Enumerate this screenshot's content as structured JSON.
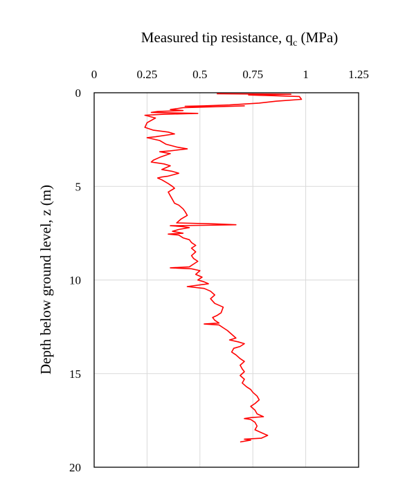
{
  "chart_data": {
    "type": "line",
    "xlabel_main": "Measured tip resistance, q",
    "xlabel_sub": "c",
    "xlabel_unit": " (MPa)",
    "ylabel": "Depth below ground level, z (m)",
    "xlim": [
      0,
      1.25
    ],
    "ylim": [
      0,
      20
    ],
    "y_inverted": true,
    "x_axis_position": "top",
    "grid": true,
    "x_ticks": [
      0,
      0.25,
      0.5,
      0.75,
      1,
      1.25
    ],
    "x_tick_labels": [
      "0",
      "0.25",
      "0.5",
      "0.75",
      "1",
      "1.25"
    ],
    "y_ticks": [
      0,
      5,
      10,
      15,
      20
    ],
    "y_tick_labels": [
      "0",
      "5",
      "10",
      "15",
      "20"
    ],
    "series": [
      {
        "color": "#ff0000",
        "points": [
          [
            0.58,
            0.05
          ],
          [
            0.93,
            0.08
          ],
          [
            0.73,
            0.12
          ],
          [
            0.97,
            0.2
          ],
          [
            0.98,
            0.35
          ],
          [
            0.86,
            0.45
          ],
          [
            0.78,
            0.55
          ],
          [
            0.64,
            0.65
          ],
          [
            0.52,
            0.7
          ],
          [
            0.43,
            0.72
          ],
          [
            0.56,
            0.75
          ],
          [
            0.71,
            0.7
          ],
          [
            0.42,
            0.8
          ],
          [
            0.36,
            0.9
          ],
          [
            0.42,
            0.95
          ],
          [
            0.3,
            1.0
          ],
          [
            0.27,
            1.05
          ],
          [
            0.39,
            1.08
          ],
          [
            0.49,
            1.1
          ],
          [
            0.33,
            1.15
          ],
          [
            0.24,
            1.2
          ],
          [
            0.29,
            1.35
          ],
          [
            0.25,
            1.6
          ],
          [
            0.24,
            1.85
          ],
          [
            0.28,
            2.0
          ],
          [
            0.35,
            2.1
          ],
          [
            0.38,
            2.2
          ],
          [
            0.29,
            2.35
          ],
          [
            0.25,
            2.4
          ],
          [
            0.31,
            2.55
          ],
          [
            0.34,
            2.75
          ],
          [
            0.39,
            2.9
          ],
          [
            0.44,
            3.0
          ],
          [
            0.36,
            3.1
          ],
          [
            0.31,
            3.15
          ],
          [
            0.36,
            3.25
          ],
          [
            0.31,
            3.45
          ],
          [
            0.28,
            3.6
          ],
          [
            0.27,
            3.7
          ],
          [
            0.3,
            3.75
          ],
          [
            0.33,
            3.8
          ],
          [
            0.36,
            3.9
          ],
          [
            0.32,
            4.1
          ],
          [
            0.37,
            4.2
          ],
          [
            0.4,
            4.3
          ],
          [
            0.35,
            4.45
          ],
          [
            0.32,
            4.5
          ],
          [
            0.3,
            4.55
          ],
          [
            0.32,
            4.65
          ],
          [
            0.35,
            4.85
          ],
          [
            0.37,
            5.0
          ],
          [
            0.38,
            5.1
          ],
          [
            0.35,
            5.3
          ],
          [
            0.36,
            5.5
          ],
          [
            0.37,
            5.7
          ],
          [
            0.38,
            5.9
          ],
          [
            0.4,
            6.0
          ],
          [
            0.42,
            6.2
          ],
          [
            0.43,
            6.35
          ],
          [
            0.44,
            6.55
          ],
          [
            0.41,
            6.75
          ],
          [
            0.39,
            6.95
          ],
          [
            0.57,
            7.0
          ],
          [
            0.67,
            7.05
          ],
          [
            0.52,
            7.08
          ],
          [
            0.36,
            7.1
          ],
          [
            0.42,
            7.15
          ],
          [
            0.45,
            7.2
          ],
          [
            0.4,
            7.3
          ],
          [
            0.37,
            7.4
          ],
          [
            0.42,
            7.5
          ],
          [
            0.35,
            7.55
          ],
          [
            0.4,
            7.6
          ],
          [
            0.42,
            7.75
          ],
          [
            0.45,
            7.85
          ],
          [
            0.46,
            8.0
          ],
          [
            0.48,
            8.15
          ],
          [
            0.46,
            8.3
          ],
          [
            0.48,
            8.5
          ],
          [
            0.46,
            8.7
          ],
          [
            0.47,
            8.85
          ],
          [
            0.49,
            9.0
          ],
          [
            0.47,
            9.15
          ],
          [
            0.45,
            9.3
          ],
          [
            0.36,
            9.35
          ],
          [
            0.46,
            9.4
          ],
          [
            0.5,
            9.5
          ],
          [
            0.48,
            9.7
          ],
          [
            0.51,
            9.85
          ],
          [
            0.49,
            10.0
          ],
          [
            0.52,
            10.1
          ],
          [
            0.54,
            10.2
          ],
          [
            0.44,
            10.35
          ],
          [
            0.52,
            10.45
          ],
          [
            0.55,
            10.6
          ],
          [
            0.57,
            10.8
          ],
          [
            0.55,
            11.0
          ],
          [
            0.57,
            11.25
          ],
          [
            0.61,
            11.45
          ],
          [
            0.6,
            11.75
          ],
          [
            0.58,
            11.9
          ],
          [
            0.56,
            12.0
          ],
          [
            0.57,
            12.15
          ],
          [
            0.59,
            12.3
          ],
          [
            0.52,
            12.35
          ],
          [
            0.59,
            12.4
          ],
          [
            0.61,
            12.55
          ],
          [
            0.63,
            12.7
          ],
          [
            0.65,
            12.9
          ],
          [
            0.67,
            13.1
          ],
          [
            0.64,
            13.2
          ],
          [
            0.68,
            13.3
          ],
          [
            0.71,
            13.4
          ],
          [
            0.69,
            13.55
          ],
          [
            0.66,
            13.65
          ],
          [
            0.65,
            13.85
          ],
          [
            0.67,
            14.0
          ],
          [
            0.69,
            14.2
          ],
          [
            0.71,
            14.35
          ],
          [
            0.69,
            14.55
          ],
          [
            0.7,
            14.75
          ],
          [
            0.71,
            14.9
          ],
          [
            0.69,
            15.1
          ],
          [
            0.71,
            15.3
          ],
          [
            0.7,
            15.5
          ],
          [
            0.72,
            15.7
          ],
          [
            0.74,
            15.85
          ],
          [
            0.75,
            16.0
          ],
          [
            0.77,
            16.2
          ],
          [
            0.78,
            16.4
          ],
          [
            0.76,
            16.6
          ],
          [
            0.74,
            16.75
          ],
          [
            0.76,
            16.95
          ],
          [
            0.77,
            17.15
          ],
          [
            0.8,
            17.3
          ],
          [
            0.74,
            17.35
          ],
          [
            0.71,
            17.4
          ],
          [
            0.74,
            17.45
          ],
          [
            0.76,
            17.6
          ],
          [
            0.77,
            17.8
          ],
          [
            0.76,
            18.0
          ],
          [
            0.79,
            18.15
          ],
          [
            0.82,
            18.3
          ],
          [
            0.79,
            18.45
          ],
          [
            0.71,
            18.5
          ],
          [
            0.74,
            18.55
          ],
          [
            0.69,
            18.65
          ]
        ]
      }
    ]
  }
}
